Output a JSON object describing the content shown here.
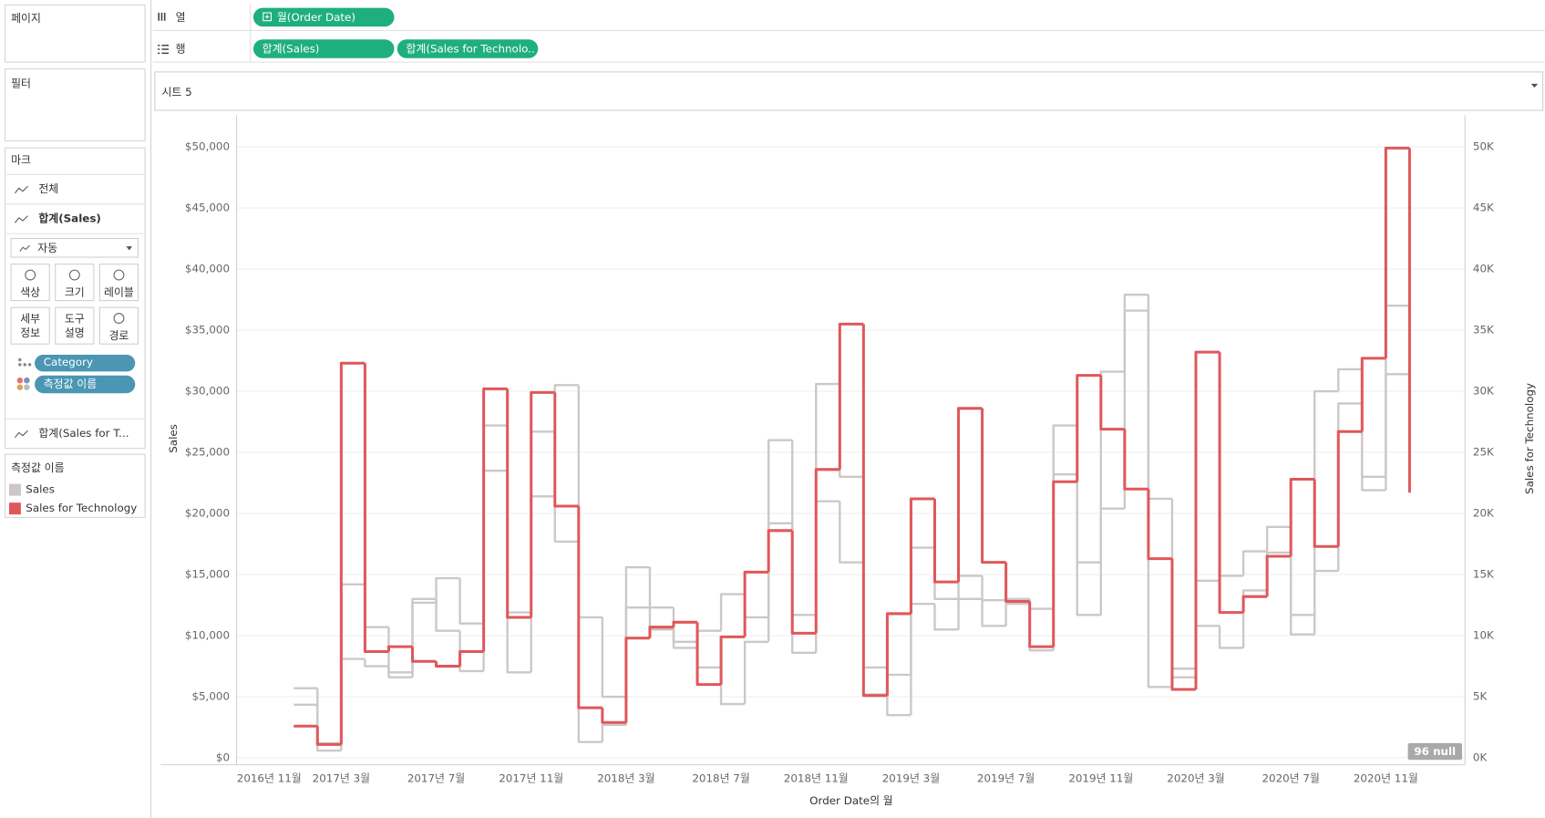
{
  "sidebar": {
    "pages": "페이지",
    "filters": "필터",
    "marks": "마크",
    "all": "전체",
    "sales_card": "합계(Sales)",
    "mark_type": "자동",
    "buttons": [
      [
        "색상"
      ],
      [
        "크기"
      ],
      [
        "레이블"
      ],
      [
        "세부",
        "정보"
      ],
      [
        "도구",
        "설명"
      ],
      [
        "경로"
      ]
    ],
    "pills": [
      "Category",
      "측정값 이름"
    ],
    "tech_card": "합계(Sales for T...",
    "legend_title": "측정값 이름"
  },
  "shelves": {
    "columns_label": "열",
    "rows_label": "행",
    "columns_pills": [
      "월(Order Date)"
    ],
    "rows_pills": [
      "합계(Sales)",
      "합계(Sales for Technolo.."
    ]
  },
  "sheet_title": "시트 5",
  "chart_data": {
    "type": "line",
    "step": true,
    "grid": true,
    "x": [
      "2016년 11월",
      "2016년 12월",
      "2017년 1월",
      "2017년 2월",
      "2017년 3월",
      "2017년 4월",
      "2017년 5월",
      "2017년 6월",
      "2017년 7월",
      "2017년 8월",
      "2017년 9월",
      "2017년 10월",
      "2017년 11월",
      "2017년 12월",
      "2018년 1월",
      "2018년 2월",
      "2018년 3월",
      "2018년 4월",
      "2018년 5월",
      "2018년 6월",
      "2018년 7월",
      "2018년 8월",
      "2018년 9월",
      "2018년 10월",
      "2018년 11월",
      "2018년 12월",
      "2019년 1월",
      "2019년 2월",
      "2019년 3월",
      "2019년 4월",
      "2019년 5월",
      "2019년 6월",
      "2019년 7월",
      "2019년 8월",
      "2019년 9월",
      "2019년 10월",
      "2019년 11월",
      "2019년 12월",
      "2020년 1월",
      "2020년 2월",
      "2020년 3월",
      "2020년 4월",
      "2020년 5월",
      "2020년 6월",
      "2020년 7월",
      "2020년 8월",
      "2020년 9월",
      "2020년 10월",
      "2020년 11월",
      "2020년 12월"
    ],
    "xticks": [
      "2016년 11월",
      "2017년 3월",
      "2017년 7월",
      "2017년 11월",
      "2018년 3월",
      "2018년 7월",
      "2018년 11월",
      "2019년 3월",
      "2019년 7월",
      "2019년 11월",
      "2020년 3월",
      "2020년 7월",
      "2020년 11월"
    ],
    "x_label": "Order Date의 월",
    "y_label": "Sales",
    "y2_label": "Sales for Technology",
    "null_indicator": "96 null",
    "ylim": [
      0,
      50000
    ],
    "yticks": [
      {
        "value": 0,
        "label": "$0"
      },
      {
        "value": 5000,
        "label": "$5,000"
      },
      {
        "value": 10000,
        "label": "$10,000"
      },
      {
        "value": 15000,
        "label": "$15,000"
      },
      {
        "value": 20000,
        "label": "$20,000"
      },
      {
        "value": 25000,
        "label": "$25,000"
      },
      {
        "value": 30000,
        "label": "$30,000"
      },
      {
        "value": 35000,
        "label": "$35,000"
      },
      {
        "value": 40000,
        "label": "$40,000"
      },
      {
        "value": 45000,
        "label": "$45,000"
      },
      {
        "value": 50000,
        "label": "$50,000"
      }
    ],
    "y2lim": [
      0,
      50000
    ],
    "y2ticks": [
      {
        "value": 0,
        "label": "0K"
      },
      {
        "value": 5000,
        "label": "5K"
      },
      {
        "value": 10000,
        "label": "10K"
      },
      {
        "value": 15000,
        "label": "15K"
      },
      {
        "value": 20000,
        "label": "20K"
      },
      {
        "value": 25000,
        "label": "25K"
      },
      {
        "value": 30000,
        "label": "30K"
      },
      {
        "value": 35000,
        "label": "35K"
      },
      {
        "value": 40000,
        "label": "40K"
      },
      {
        "value": 45000,
        "label": "45K"
      },
      {
        "value": 50000,
        "label": "50K"
      }
    ],
    "series": [
      {
        "name": "Sales",
        "color": "#cdc7c7",
        "values": [
          [
            null,
            null,
            5700,
            1200,
            14200,
            10700,
            7000,
            12700,
            14700,
            11000,
            27200,
            11900,
            26700,
            30500,
            11500,
            5000,
            15600,
            12300,
            9500,
            10400,
            13400,
            11500,
            26000,
            11700,
            30600,
            23000,
            7400,
            6800,
            17200,
            13000,
            14900,
            12900,
            13000,
            12200,
            27200,
            16000,
            31600,
            37900,
            21200,
            7300,
            14500,
            14900,
            16900,
            18900,
            11700,
            30000,
            31800,
            23000,
            37000,
            31500
          ],
          [
            null,
            null,
            4350,
            600,
            8100,
            7500,
            6600,
            13000,
            10400,
            7100,
            23500,
            7000,
            21400,
            17700,
            1300,
            2700,
            12300,
            10500,
            9000,
            7400,
            4400,
            9500,
            19200,
            8600,
            21000,
            16000,
            5200,
            3500,
            12600,
            10500,
            13000,
            10800,
            12600,
            8800,
            23200,
            11700,
            20400,
            36600,
            5800,
            6600,
            10800,
            9000,
            13700,
            16800,
            10100,
            15300,
            29000,
            21900,
            31400,
            23000
          ]
        ]
      },
      {
        "name": "Sales for Technology",
        "color": "#e0575a",
        "axis": "y2",
        "values": [
          null,
          null,
          2600,
          1100,
          32300,
          8700,
          9100,
          7900,
          7500,
          8700,
          30200,
          11500,
          29900,
          20600,
          4100,
          2900,
          9800,
          10700,
          11100,
          6000,
          9900,
          15200,
          18600,
          10200,
          23600,
          35500,
          5100,
          11800,
          21200,
          14400,
          28600,
          16000,
          12800,
          9100,
          22600,
          31300,
          26900,
          22000,
          16300,
          5600,
          33200,
          11900,
          13200,
          16500,
          22800,
          17300,
          26700,
          32700,
          49900,
          21700
        ]
      }
    ]
  }
}
